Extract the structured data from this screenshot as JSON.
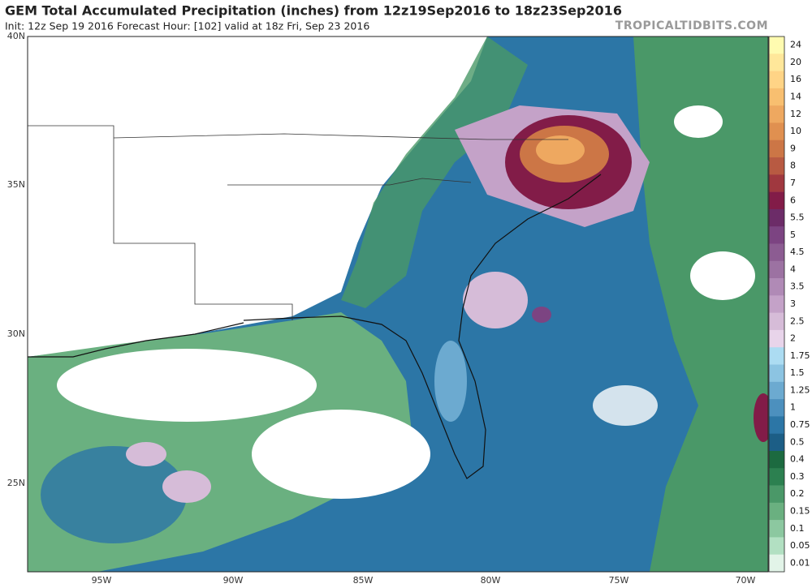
{
  "header": {
    "title": "GEM Total Accumulated Precipitation (inches) from 12z19Sep2016 to 18z23Sep2016",
    "subtitle": "Init: 12z Sep 19 2016   Forecast Hour: [102]   valid at 18z Fri, Sep 23 2016",
    "brand": "TROPICALTIDBITS.COM"
  },
  "map": {
    "lat_labels": [
      "40N",
      "35N",
      "30N",
      "25N"
    ],
    "lon_labels": [
      "95W",
      "90W",
      "85W",
      "80W",
      "75W",
      "70W"
    ]
  },
  "colorbar": [
    {
      "label": "24",
      "color": "#fffbb0"
    },
    {
      "label": "20",
      "color": "#ffe79a"
    },
    {
      "label": "16",
      "color": "#ffd486"
    },
    {
      "label": "14",
      "color": "#f8bf70"
    },
    {
      "label": "12",
      "color": "#eea860"
    },
    {
      "label": "10",
      "color": "#e09050"
    },
    {
      "label": "9",
      "color": "#cc7646"
    },
    {
      "label": "8",
      "color": "#b85a42"
    },
    {
      "label": "7",
      "color": "#a0383f"
    },
    {
      "label": "6",
      "color": "#821c48"
    },
    {
      "label": "5.5",
      "color": "#6c2c68"
    },
    {
      "label": "5",
      "color": "#7c4482"
    },
    {
      "label": "4.5",
      "color": "#8c5c92"
    },
    {
      "label": "4",
      "color": "#9c72a2"
    },
    {
      "label": "3.5",
      "color": "#b08ab6"
    },
    {
      "label": "3",
      "color": "#c4a2c8"
    },
    {
      "label": "2.5",
      "color": "#d6bcd8"
    },
    {
      "label": "2",
      "color": "#e8d4ea"
    },
    {
      "label": "1.75",
      "color": "#acdcf2"
    },
    {
      "label": "1.5",
      "color": "#8cc4e2"
    },
    {
      "label": "1.25",
      "color": "#6caad0"
    },
    {
      "label": "1",
      "color": "#4c90be"
    },
    {
      "label": "0.75",
      "color": "#2c76a6"
    },
    {
      "label": "0.5",
      "color": "#1c5e86"
    },
    {
      "label": "0.4",
      "color": "#1c6a40"
    },
    {
      "label": "0.3",
      "color": "#2c8050"
    },
    {
      "label": "0.2",
      "color": "#4a9868"
    },
    {
      "label": "0.15",
      "color": "#6ab080"
    },
    {
      "label": "0.1",
      "color": "#8cc8a0"
    },
    {
      "label": "0.05",
      "color": "#b2e0c2"
    },
    {
      "label": "0.01",
      "color": "#e2f4e8"
    }
  ]
}
